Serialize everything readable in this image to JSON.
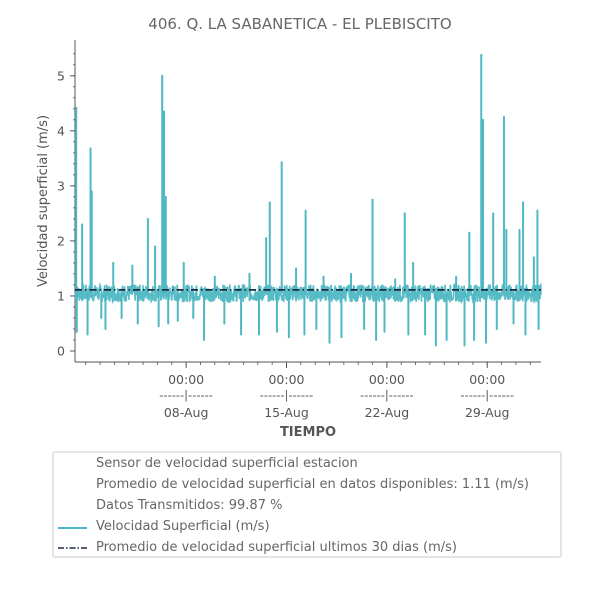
{
  "chart_data": {
    "type": "line",
    "title": "406. Q. LA SABANETICA - EL PLEBISCITO",
    "xlabel": "TIEMPO",
    "ylabel": "Velocidad superficial (m/s)",
    "ylim": [
      -0.2,
      5.65
    ],
    "yticks": [
      0,
      1,
      2,
      3,
      4,
      5
    ],
    "x_range_days": [
      "2023-07-31T06:00",
      "2023-09-01T18:00"
    ],
    "xticks": [
      {
        "date": "2023-08-08T00:00",
        "time": "00:00",
        "sep": "------|------",
        "day": "08-Aug"
      },
      {
        "date": "2023-08-15T00:00",
        "time": "00:00",
        "sep": "------|------",
        "day": "15-Aug"
      },
      {
        "date": "2023-08-22T00:00",
        "time": "00:00",
        "sep": "------|------",
        "day": "22-Aug"
      },
      {
        "date": "2023-08-29T00:00",
        "time": "00:00",
        "sep": "------|------",
        "day": "29-Aug"
      }
    ],
    "series": [
      {
        "name": "Velocidad Superficial (m/s)",
        "color": "#4fb8c3",
        "style": "solid",
        "baseline": 1.05,
        "points": [
          {
            "x": "2023-07-31T08:00",
            "y": 4.42
          },
          {
            "x": "2023-07-31T09:00",
            "y": 0.35
          },
          {
            "x": "2023-07-31T18:00",
            "y": 2.3
          },
          {
            "x": "2023-08-01T03:00",
            "y": 0.3
          },
          {
            "x": "2023-08-01T08:00",
            "y": 3.68
          },
          {
            "x": "2023-08-01T10:00",
            "y": 2.9
          },
          {
            "x": "2023-08-02T02:00",
            "y": 0.6
          },
          {
            "x": "2023-08-02T09:00",
            "y": 0.4
          },
          {
            "x": "2023-08-02T22:00",
            "y": 1.6
          },
          {
            "x": "2023-08-03T12:00",
            "y": 0.6
          },
          {
            "x": "2023-08-04T06:00",
            "y": 1.55
          },
          {
            "x": "2023-08-04T15:00",
            "y": 0.5
          },
          {
            "x": "2023-08-05T08:00",
            "y": 2.4
          },
          {
            "x": "2023-08-05T20:00",
            "y": 1.9
          },
          {
            "x": "2023-08-06T02:00",
            "y": 0.45
          },
          {
            "x": "2023-08-06T08:00",
            "y": 5.0
          },
          {
            "x": "2023-08-06T11:00",
            "y": 4.35
          },
          {
            "x": "2023-08-06T14:00",
            "y": 2.8
          },
          {
            "x": "2023-08-06T18:00",
            "y": 0.5
          },
          {
            "x": "2023-08-07T10:00",
            "y": 0.55
          },
          {
            "x": "2023-08-07T20:00",
            "y": 1.6
          },
          {
            "x": "2023-08-08T12:00",
            "y": 0.6
          },
          {
            "x": "2023-08-09T06:00",
            "y": 0.2
          },
          {
            "x": "2023-08-10T00:00",
            "y": 1.35
          },
          {
            "x": "2023-08-10T16:00",
            "y": 0.5
          },
          {
            "x": "2023-08-11T20:00",
            "y": 0.3
          },
          {
            "x": "2023-08-12T10:00",
            "y": 1.4
          },
          {
            "x": "2023-08-13T02:00",
            "y": 0.3
          },
          {
            "x": "2023-08-13T14:00",
            "y": 2.05
          },
          {
            "x": "2023-08-13T20:00",
            "y": 2.7
          },
          {
            "x": "2023-08-14T08:00",
            "y": 0.35
          },
          {
            "x": "2023-08-14T16:00",
            "y": 3.43
          },
          {
            "x": "2023-08-15T04:00",
            "y": 0.25
          },
          {
            "x": "2023-08-15T16:00",
            "y": 1.5
          },
          {
            "x": "2023-08-16T06:00",
            "y": 0.3
          },
          {
            "x": "2023-08-16T08:00",
            "y": 2.55
          },
          {
            "x": "2023-08-17T02:00",
            "y": 0.4
          },
          {
            "x": "2023-08-17T14:00",
            "y": 1.35
          },
          {
            "x": "2023-08-18T00:00",
            "y": 0.15
          },
          {
            "x": "2023-08-18T20:00",
            "y": 0.25
          },
          {
            "x": "2023-08-19T12:00",
            "y": 1.4
          },
          {
            "x": "2023-08-20T10:00",
            "y": 0.4
          },
          {
            "x": "2023-08-21T00:00",
            "y": 2.75
          },
          {
            "x": "2023-08-21T06:00",
            "y": 0.2
          },
          {
            "x": "2023-08-21T20:00",
            "y": 0.35
          },
          {
            "x": "2023-08-22T14:00",
            "y": 1.3
          },
          {
            "x": "2023-08-23T06:00",
            "y": 2.5
          },
          {
            "x": "2023-08-23T12:00",
            "y": 0.3
          },
          {
            "x": "2023-08-23T20:00",
            "y": 1.6
          },
          {
            "x": "2023-08-24T16:00",
            "y": 0.3
          },
          {
            "x": "2023-08-25T10:00",
            "y": 0.1
          },
          {
            "x": "2023-08-26T04:00",
            "y": 0.2
          },
          {
            "x": "2023-08-26T20:00",
            "y": 1.35
          },
          {
            "x": "2023-08-27T10:00",
            "y": 0.1
          },
          {
            "x": "2023-08-27T18:00",
            "y": 2.15
          },
          {
            "x": "2023-08-28T02:00",
            "y": 0.2
          },
          {
            "x": "2023-08-28T14:00",
            "y": 5.38
          },
          {
            "x": "2023-08-28T17:00",
            "y": 4.2
          },
          {
            "x": "2023-08-28T22:00",
            "y": 0.15
          },
          {
            "x": "2023-08-29T10:00",
            "y": 2.5
          },
          {
            "x": "2023-08-29T16:00",
            "y": 0.4
          },
          {
            "x": "2023-08-30T04:00",
            "y": 4.25
          },
          {
            "x": "2023-08-30T08:00",
            "y": 2.2
          },
          {
            "x": "2023-08-30T20:00",
            "y": 0.5
          },
          {
            "x": "2023-08-31T06:00",
            "y": 2.2
          },
          {
            "x": "2023-08-31T12:00",
            "y": 2.7
          },
          {
            "x": "2023-08-31T16:00",
            "y": 0.3
          },
          {
            "x": "2023-09-01T06:00",
            "y": 1.7
          },
          {
            "x": "2023-09-01T12:00",
            "y": 2.55
          },
          {
            "x": "2023-09-01T14:00",
            "y": 0.4
          }
        ]
      },
      {
        "name": "Promedio de velocidad superficial ultimos 30 dias (m/s)",
        "color": "#1b2a41",
        "style": "dashdot",
        "value": 1.11
      }
    ]
  },
  "legend": {
    "lines": [
      "Sensor de velocidad superficial estacion",
      "Promedio de velocidad superficial en datos disponibles: 1.11 (m/s)",
      "Datos Transmitidos: 99.87 %",
      "Velocidad Superficial (m/s)",
      "Promedio de velocidad superficial ultimos 30 dias (m/s)"
    ]
  }
}
